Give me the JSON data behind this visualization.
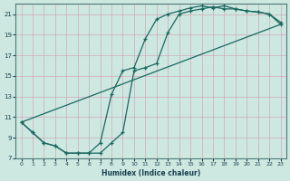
{
  "xlabel": "Humidex (Indice chaleur)",
  "bg_color": "#cce8e0",
  "grid_color": "#d4a8b8",
  "line_color": "#1a6860",
  "xlim": [
    -0.5,
    23.5
  ],
  "ylim": [
    7,
    22
  ],
  "xticks": [
    0,
    1,
    2,
    3,
    4,
    5,
    6,
    7,
    8,
    9,
    10,
    11,
    12,
    13,
    14,
    15,
    16,
    17,
    18,
    19,
    20,
    21,
    22,
    23
  ],
  "yticks": [
    7,
    9,
    11,
    13,
    15,
    17,
    19,
    21
  ],
  "curve1_x": [
    0,
    1,
    2,
    3,
    4,
    5,
    6,
    7,
    8,
    9,
    10,
    11,
    12,
    13,
    14,
    15,
    16,
    17,
    18,
    19,
    20,
    21,
    22,
    23
  ],
  "curve1_y": [
    10.5,
    9.5,
    8.5,
    8.2,
    7.5,
    7.5,
    7.5,
    8.5,
    13.2,
    15.5,
    15.8,
    18.6,
    20.5,
    21.0,
    21.3,
    21.6,
    21.8,
    21.6,
    21.8,
    21.5,
    21.3,
    21.2,
    21.0,
    20.2
  ],
  "curve2_x": [
    0,
    1,
    2,
    3,
    4,
    5,
    6,
    7,
    8,
    9,
    10,
    11,
    12,
    13,
    14,
    15,
    16,
    17,
    18,
    19,
    20,
    21,
    22,
    23
  ],
  "curve2_y": [
    10.5,
    9.5,
    8.5,
    8.2,
    7.5,
    7.5,
    7.5,
    7.5,
    8.5,
    9.5,
    15.5,
    15.8,
    16.2,
    19.2,
    21.0,
    21.3,
    21.5,
    21.7,
    21.5,
    21.5,
    21.3,
    21.2,
    21.0,
    20.0
  ],
  "curve3_x": [
    0,
    23
  ],
  "curve3_y": [
    10.5,
    20.0
  ]
}
